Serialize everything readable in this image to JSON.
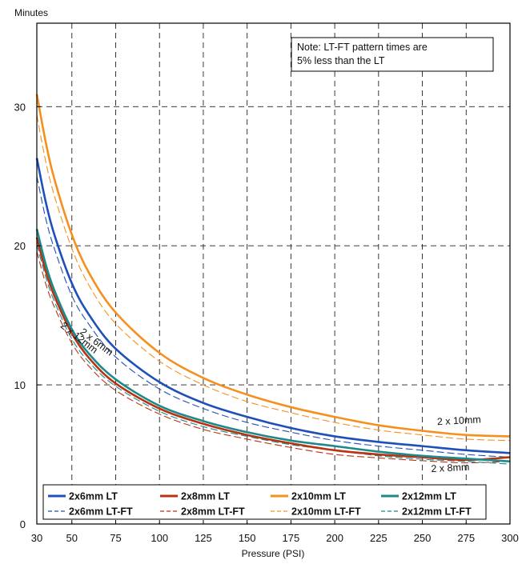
{
  "chart_data": {
    "type": "line",
    "title": "",
    "xlabel": "Pressure (PSI)",
    "ylabel": "Minutes",
    "xlim": [
      30,
      300
    ],
    "ylim": [
      0,
      36
    ],
    "x_ticks": [
      30,
      50,
      75,
      100,
      125,
      150,
      175,
      200,
      225,
      250,
      275,
      300
    ],
    "y_ticks": [
      0,
      10,
      20,
      30
    ],
    "grid": "dashed",
    "note": [
      "Note: LT-FT pattern times are",
      "5% less than the LT"
    ],
    "x": [
      30,
      35,
      40,
      50,
      60,
      75,
      100,
      125,
      150,
      175,
      200,
      225,
      250,
      275,
      300
    ],
    "series": [
      {
        "name": "2x6mm LT",
        "color": "#1f4fb8",
        "style": "solid",
        "values": [
          26.3,
          23.2,
          20.8,
          17.3,
          15.0,
          12.6,
          10.2,
          8.7,
          7.7,
          6.9,
          6.3,
          5.9,
          5.6,
          5.3,
          5.1
        ]
      },
      {
        "name": "2x8mm LT",
        "color": "#b83214",
        "style": "solid",
        "values": [
          20.6,
          18.2,
          16.4,
          13.7,
          11.9,
          10.1,
          8.3,
          7.2,
          6.4,
          5.8,
          5.3,
          5.0,
          4.8,
          4.6,
          4.8
        ]
      },
      {
        "name": "2x10mm LT",
        "color": "#f5901e",
        "style": "solid",
        "values": [
          30.9,
          27.5,
          24.8,
          20.8,
          18.0,
          15.2,
          12.3,
          10.5,
          9.3,
          8.4,
          7.7,
          7.1,
          6.7,
          6.4,
          6.3
        ]
      },
      {
        "name": "2x12mm LT",
        "color": "#1c8a8a",
        "style": "solid",
        "values": [
          21.2,
          18.7,
          16.8,
          14.0,
          12.2,
          10.4,
          8.5,
          7.4,
          6.6,
          6.0,
          5.6,
          5.2,
          4.9,
          4.7,
          4.5
        ]
      },
      {
        "name": "2x6mm LT-FT",
        "color": "#1f4fb8",
        "style": "dashed",
        "values": [
          25.0,
          22.0,
          19.8,
          16.4,
          14.3,
          12.0,
          9.7,
          8.3,
          7.3,
          6.6,
          6.0,
          5.6,
          5.3,
          5.0,
          4.8
        ]
      },
      {
        "name": "2x8mm LT-FT",
        "color": "#b83214",
        "style": "dashed",
        "values": [
          19.6,
          17.3,
          15.6,
          13.0,
          11.3,
          9.6,
          7.9,
          6.8,
          6.1,
          5.5,
          5.0,
          4.75,
          4.55,
          4.4,
          4.5
        ]
      },
      {
        "name": "2x10mm LT-FT",
        "color": "#f5901e",
        "style": "dashed",
        "values": [
          29.4,
          26.1,
          23.6,
          19.8,
          17.1,
          14.4,
          11.7,
          10.0,
          8.8,
          8.0,
          7.3,
          6.75,
          6.4,
          6.1,
          6.0
        ]
      },
      {
        "name": "2x12mm LT-FT",
        "color": "#1c8a8a",
        "style": "dashed",
        "values": [
          20.1,
          17.8,
          16.0,
          13.3,
          11.6,
          9.9,
          8.1,
          7.0,
          6.3,
          5.7,
          5.3,
          4.9,
          4.65,
          4.5,
          4.3
        ]
      }
    ],
    "curve_labels": [
      {
        "text": "2 x 6mm",
        "x": 63,
        "y": 12.9,
        "angle": 37
      },
      {
        "text": "2 x 12mm",
        "x": 53,
        "y": 13.2,
        "angle": 38
      },
      {
        "text": "2 x 10mm",
        "x": 271,
        "y": 7.2,
        "angle": -3
      },
      {
        "text": "2 x 8mm",
        "x": 266,
        "y": 3.8,
        "angle": -3
      }
    ],
    "legend_placement": "bottom"
  }
}
